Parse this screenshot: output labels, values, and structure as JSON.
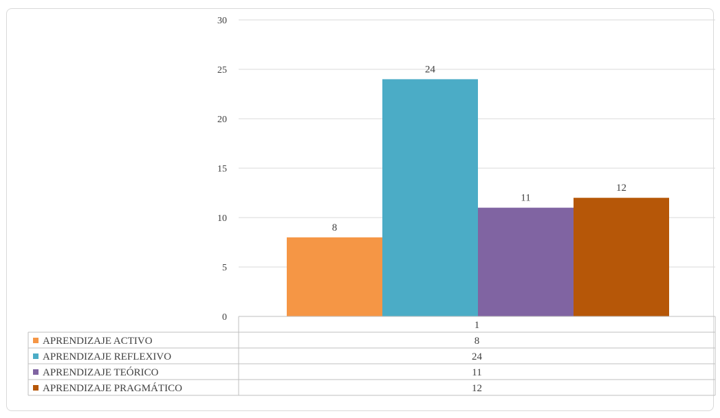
{
  "chart_data": {
    "type": "bar",
    "categories": [
      "1"
    ],
    "series": [
      {
        "name": "APRENDIZAJE ACTIVO",
        "values": [
          8
        ],
        "color": "#f59645"
      },
      {
        "name": "APRENDIZAJE REFLEXIVO",
        "values": [
          24
        ],
        "color": "#4bacc6"
      },
      {
        "name": "APRENDIZAJE TEÓRICO",
        "values": [
          11
        ],
        "color": "#8064a2"
      },
      {
        "name": "APRENDIZAJE PRAGMÁTICO",
        "values": [
          12
        ],
        "color": "#b65708"
      }
    ],
    "ylim": [
      0,
      30
    ],
    "yticks": [
      0,
      5,
      10,
      15,
      20,
      25,
      30
    ],
    "grid": true,
    "legend": "data-table-below",
    "title": "",
    "xlabel": "",
    "ylabel": ""
  }
}
